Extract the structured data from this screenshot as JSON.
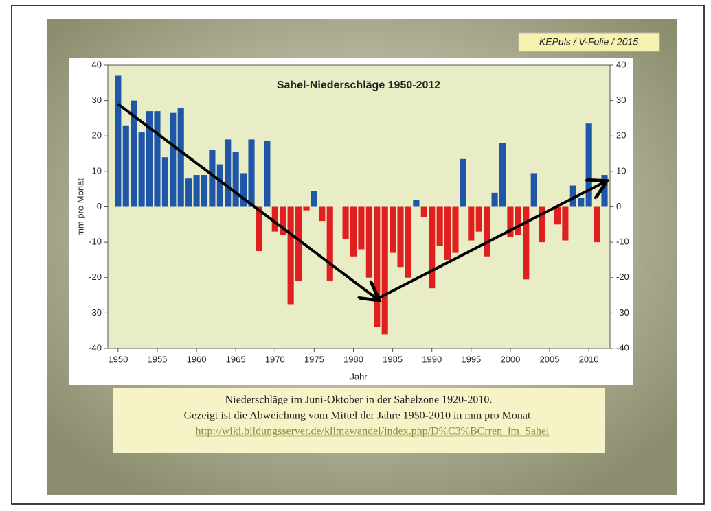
{
  "tag": "KEPuls / V-Folie / 2015",
  "chart_data": {
    "type": "bar",
    "title": "Sahel-Niederschläge 1950-2012",
    "y_label": "mm pro Monat",
    "x_label": "Jahr",
    "x": [
      1950,
      1951,
      1952,
      1953,
      1954,
      1955,
      1956,
      1957,
      1958,
      1959,
      1960,
      1961,
      1962,
      1963,
      1964,
      1965,
      1966,
      1967,
      1968,
      1969,
      1970,
      1971,
      1972,
      1973,
      1974,
      1975,
      1976,
      1977,
      1978,
      1979,
      1980,
      1981,
      1982,
      1983,
      1984,
      1985,
      1986,
      1987,
      1988,
      1989,
      1990,
      1991,
      1992,
      1993,
      1994,
      1995,
      1996,
      1997,
      1998,
      1999,
      2000,
      2001,
      2002,
      2003,
      2004,
      2005,
      2006,
      2007,
      2008,
      2009,
      2010,
      2011,
      2012
    ],
    "values": [
      37,
      23,
      30,
      21,
      27,
      27,
      14,
      26.5,
      28,
      8,
      9,
      9,
      16,
      12,
      19,
      15.5,
      9.5,
      19,
      -12.5,
      18.5,
      -7,
      -8,
      -27.5,
      -21,
      -1,
      4.5,
      -4,
      -21,
      0,
      -9,
      -14,
      -12,
      -20,
      -34,
      -36,
      -13,
      -17,
      -20,
      2,
      -3,
      -23,
      -11,
      -15,
      -13,
      13.5,
      -9.5,
      -7,
      -14,
      4,
      18,
      -8.5,
      -8,
      -20.5,
      9.5,
      -10,
      0,
      -5,
      -9.5,
      6,
      2.5,
      23.5,
      -10,
      9
    ],
    "color_positive": "#1f56a8",
    "color_negative": "#e02020",
    "xlim": [
      1948.7,
      2012.7
    ],
    "xticks": [
      1950,
      1955,
      1960,
      1965,
      1970,
      1975,
      1980,
      1985,
      1990,
      1995,
      2000,
      2005,
      2010
    ],
    "ylim": [
      -40,
      40
    ],
    "yticks": [
      -40,
      -30,
      -20,
      -10,
      0,
      10,
      20,
      30,
      40
    ],
    "y2lim": [
      -40,
      40
    ],
    "y2ticks": [
      -40,
      -30,
      -20,
      -10,
      0,
      10,
      20,
      30,
      40
    ],
    "trend_arrows": {
      "x": [
        1950,
        1983,
        2012
      ],
      "y": [
        29,
        -26,
        7
      ]
    }
  },
  "caption": {
    "lines": [
      "Niederschläge im Juni-Oktober in der Sahelzone 1920-2010.",
      "Gezeigt ist die Abweichung vom Mittel der Jahre 1950-2010 in mm pro Monat."
    ],
    "link": "http://wiki.bildungsserver.de/klimawandel/index.php/D%C3%BCrren_im_Sahel"
  }
}
